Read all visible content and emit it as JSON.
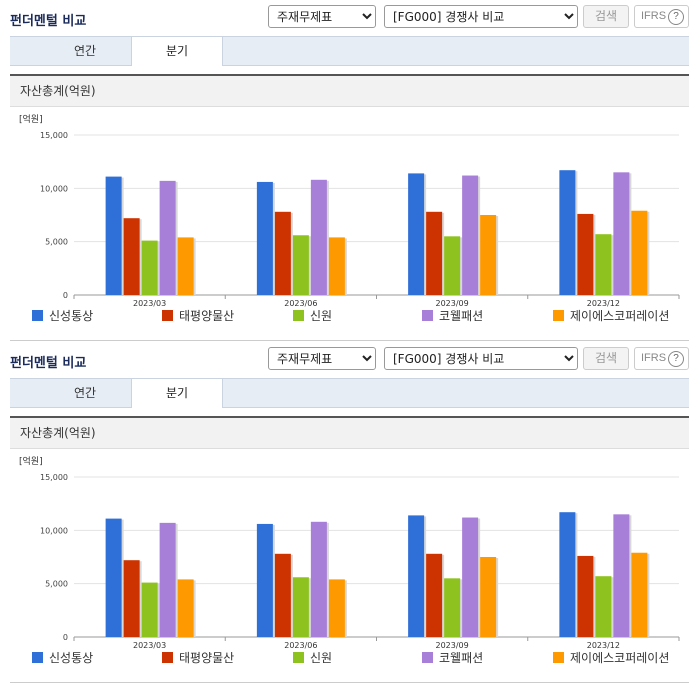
{
  "panels": [
    {
      "title": "펀더멘털 비교",
      "select_main": "주재무제표",
      "select_peer": "[FG000] 경쟁사 비교",
      "search_label": "검색",
      "ifrs_label": "IFRS",
      "help_label": "?",
      "tabs": [
        "연간",
        "분기"
      ],
      "box_title": "자산총계(억원)"
    },
    {
      "title": "펀더멘털 비교",
      "select_main": "주재무제표",
      "select_peer": "[FG000] 경쟁사 비교",
      "search_label": "검색",
      "ifrs_label": "IFRS",
      "help_label": "?",
      "tabs": [
        "연간",
        "분기"
      ],
      "box_title": "자산총계(억원)"
    }
  ],
  "chart_data": [
    {
      "type": "bar",
      "unit_label": "[억원]",
      "categories": [
        "2023/03",
        "2023/06",
        "2023/09",
        "2023/12"
      ],
      "ylim": [
        0,
        15000
      ],
      "yticks": [
        "0",
        "5,000",
        "10,000",
        "15,000"
      ],
      "grid": true,
      "legend_position": "bottom",
      "series": [
        {
          "name": "신성통상",
          "color": "#2e6fd8",
          "values": [
            11100,
            10600,
            11400,
            11700
          ]
        },
        {
          "name": "태평양물산",
          "color": "#cc3300",
          "values": [
            7200,
            7800,
            7800,
            7600
          ]
        },
        {
          "name": "신원",
          "color": "#8dc21f",
          "values": [
            5100,
            5600,
            5500,
            5700
          ]
        },
        {
          "name": "코웰패션",
          "color": "#a77ed8",
          "values": [
            10700,
            10800,
            11200,
            11500
          ]
        },
        {
          "name": "제이에스코퍼레이션",
          "color": "#ff9900",
          "values": [
            5400,
            5400,
            7500,
            7900
          ]
        }
      ]
    },
    {
      "type": "bar",
      "unit_label": "[억원]",
      "categories": [
        "2023/03",
        "2023/06",
        "2023/09",
        "2023/12"
      ],
      "ylim": [
        0,
        15000
      ],
      "yticks": [
        "0",
        "5,000",
        "10,000",
        "15,000"
      ],
      "grid": true,
      "legend_position": "bottom",
      "series": [
        {
          "name": "신성통상",
          "color": "#2e6fd8",
          "values": [
            11100,
            10600,
            11400,
            11700
          ]
        },
        {
          "name": "태평양물산",
          "color": "#cc3300",
          "values": [
            7200,
            7800,
            7800,
            7600
          ]
        },
        {
          "name": "신원",
          "color": "#8dc21f",
          "values": [
            5100,
            5600,
            5500,
            5700
          ]
        },
        {
          "name": "코웰패션",
          "color": "#a77ed8",
          "values": [
            10700,
            10800,
            11200,
            11500
          ]
        },
        {
          "name": "제이에스코퍼레이션",
          "color": "#ff9900",
          "values": [
            5400,
            5400,
            7500,
            7900
          ]
        }
      ]
    }
  ]
}
